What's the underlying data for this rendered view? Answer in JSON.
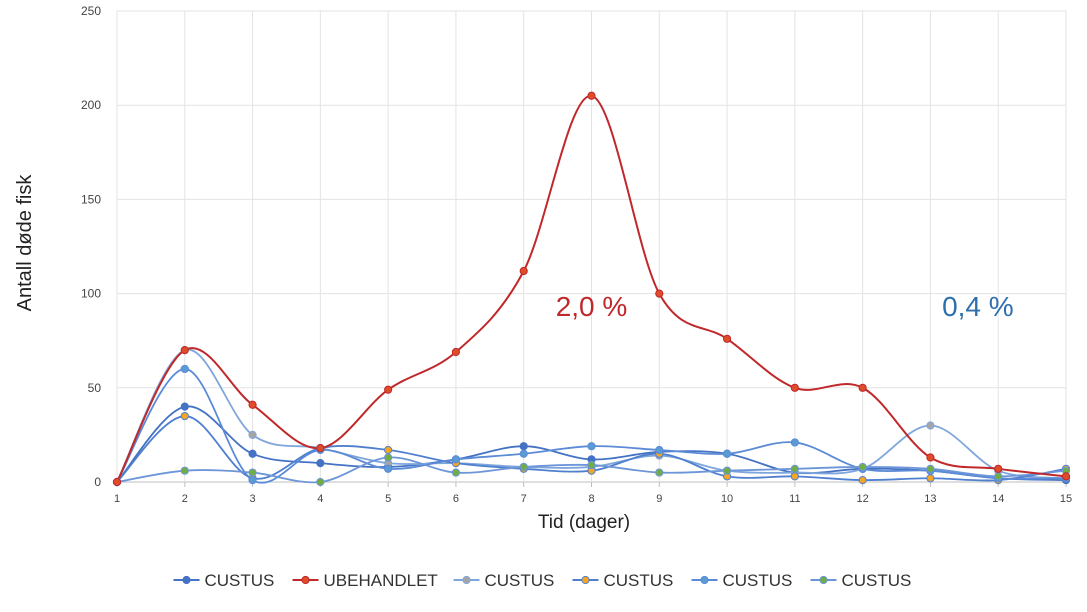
{
  "chart_data": {
    "type": "line",
    "title": "",
    "xlabel": "Tid (dager)",
    "ylabel": "Antall døde fisk",
    "x": [
      1,
      2,
      3,
      4,
      5,
      6,
      7,
      8,
      9,
      10,
      11,
      12,
      13,
      14,
      15
    ],
    "x_ticks": [
      "1",
      "2",
      "3",
      "4",
      "5",
      "6",
      "7",
      "8",
      "9",
      "10",
      "11",
      "12",
      "13",
      "14",
      "15"
    ],
    "ylim": [
      0,
      250
    ],
    "y_ticks": [
      "0",
      "50",
      "100",
      "150",
      "200",
      "250"
    ],
    "grid": true,
    "legend_position": "bottom",
    "smooth": true,
    "series": [
      {
        "name": "CUSTUS",
        "color": "#4472c4",
        "marker": "#4472c4",
        "values": [
          0,
          40,
          15,
          10,
          8,
          12,
          19,
          12,
          16,
          15,
          5,
          7,
          6,
          2,
          1
        ]
      },
      {
        "name": "UBEHANDLET",
        "color": "#c0282a",
        "marker": "#e04b2a",
        "values": [
          0,
          70,
          41,
          18,
          49,
          69,
          112,
          205,
          100,
          76,
          50,
          50,
          13,
          7,
          3
        ]
      },
      {
        "name": "CUSTUS",
        "color": "#7ea6dd",
        "marker": "#a5a5a5",
        "values": [
          0,
          70,
          25,
          18,
          10,
          10,
          8,
          8,
          14,
          6,
          5,
          7,
          30,
          6,
          2
        ]
      },
      {
        "name": "CUSTUS",
        "color": "#4f7fcf",
        "marker": "#f5a623",
        "values": [
          0,
          35,
          2,
          18,
          17,
          10,
          7,
          6,
          15,
          3,
          3,
          1,
          2,
          1,
          7
        ]
      },
      {
        "name": "CUSTUS",
        "color": "#5b8bd6",
        "marker": "#5b9bd5",
        "values": [
          0,
          60,
          1,
          17,
          7,
          12,
          15,
          19,
          17,
          15,
          21,
          7,
          6,
          2,
          2
        ]
      },
      {
        "name": "CUSTUS",
        "color": "#6d96d9",
        "marker": "#70ad47",
        "values": [
          0,
          6,
          5,
          0,
          13,
          5,
          8,
          9,
          5,
          6,
          7,
          8,
          7,
          3,
          6
        ]
      }
    ],
    "annotations": [
      {
        "text": "2,0 %",
        "x": 8,
        "y": 88,
        "color": "#c0282a"
      },
      {
        "text": "0,4 %",
        "x": 13.7,
        "y": 88,
        "color": "#2e6fad"
      }
    ]
  }
}
